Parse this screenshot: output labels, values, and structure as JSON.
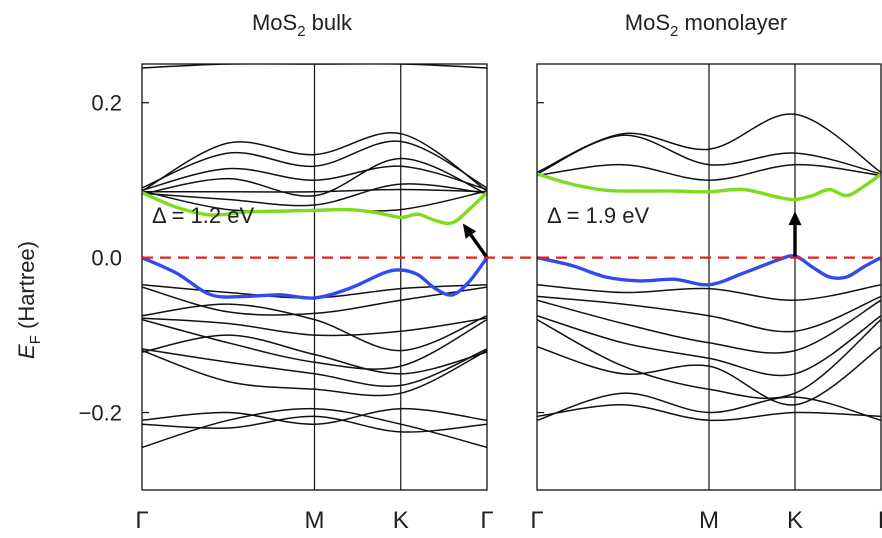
{
  "chart_data": [
    {
      "type": "line",
      "title": "MoS2 bulk",
      "title_main": "MoS",
      "title_sub": "2",
      "title_rest": " bulk",
      "ylabel_main": "E",
      "ylabel_sub": "F",
      "ylabel_rest": " (Hartree)",
      "ylim": [
        -0.3,
        0.25
      ],
      "yticks": [
        -0.2,
        0.0,
        0.2
      ],
      "ytick_labels": [
        "−0.2",
        "0.0",
        "0.2"
      ],
      "x_ticks": [
        0,
        0.5,
        0.75,
        1.0
      ],
      "x_tick_labels": [
        "Γ",
        "M",
        "K",
        "Γ"
      ],
      "fermi_level": 0.0,
      "gap_label": "Δ = 1.2 eV",
      "gap_arrow": {
        "from": [
          1.0,
          0.0
        ],
        "to": [
          0.93,
          0.044
        ]
      },
      "series": [
        {
          "role": "conduction-band-minimum",
          "color": "#7ddc1f",
          "x": [
            0,
            0.1,
            0.2,
            0.3,
            0.4,
            0.5,
            0.6,
            0.68,
            0.75,
            0.8,
            0.85,
            0.9,
            0.95,
            1.0
          ],
          "y": [
            0.084,
            0.065,
            0.055,
            0.059,
            0.06,
            0.061,
            0.062,
            0.058,
            0.052,
            0.056,
            0.048,
            0.045,
            0.063,
            0.084
          ]
        },
        {
          "role": "valence-band-maximum",
          "color": "#2f4cf0",
          "x": [
            0,
            0.1,
            0.2,
            0.3,
            0.4,
            0.5,
            0.6,
            0.7,
            0.75,
            0.8,
            0.85,
            0.9,
            0.95,
            1.0
          ],
          "y": [
            0.0,
            -0.02,
            -0.048,
            -0.05,
            -0.048,
            -0.052,
            -0.04,
            -0.02,
            -0.016,
            -0.022,
            -0.04,
            -0.048,
            -0.03,
            0.0
          ]
        },
        {
          "color": "#111111",
          "x": [
            0,
            0.25,
            0.5,
            0.75,
            1.0
          ],
          "y": [
            0.087,
            0.115,
            0.1,
            0.118,
            0.088
          ]
        },
        {
          "color": "#111111",
          "x": [
            0,
            0.25,
            0.5,
            0.75,
            1.0
          ],
          "y": [
            0.09,
            0.135,
            0.118,
            0.15,
            0.09
          ]
        },
        {
          "color": "#111111",
          "x": [
            0,
            0.25,
            0.5,
            0.75,
            1.0
          ],
          "y": [
            0.086,
            0.148,
            0.133,
            0.16,
            0.086
          ]
        },
        {
          "color": "#111111",
          "x": [
            0,
            0.25,
            0.5,
            0.75,
            1.0
          ],
          "y": [
            0.085,
            0.085,
            0.085,
            0.088,
            0.085
          ]
        },
        {
          "color": "#111111",
          "x": [
            0,
            0.25,
            0.5,
            0.75,
            1.0
          ],
          "y": [
            0.083,
            0.075,
            0.068,
            0.095,
            0.083
          ]
        },
        {
          "color": "#111111",
          "x": [
            0,
            0.25,
            0.5,
            0.75,
            1.0
          ],
          "y": [
            0.082,
            0.102,
            0.08,
            0.128,
            0.082
          ]
        },
        {
          "color": "#111111",
          "x": [
            0,
            0.25,
            0.5,
            0.75,
            1.0
          ],
          "y": [
            0.086,
            0.062,
            0.062,
            0.062,
            0.086
          ]
        },
        {
          "color": "#111111",
          "x": [
            0,
            0.25,
            0.5,
            0.75,
            1.0
          ],
          "y": [
            0.245,
            0.25,
            0.25,
            0.25,
            0.245
          ]
        },
        {
          "color": "#111111",
          "x": [
            0,
            0.25,
            0.5,
            0.75,
            1.0
          ],
          "y": [
            -0.035,
            -0.045,
            -0.052,
            -0.04,
            -0.035
          ]
        },
        {
          "color": "#111111",
          "x": [
            0,
            0.25,
            0.5,
            0.75,
            1.0
          ],
          "y": [
            -0.038,
            -0.07,
            -0.072,
            -0.055,
            -0.038
          ]
        },
        {
          "color": "#111111",
          "x": [
            0,
            0.25,
            0.5,
            0.75,
            1.0
          ],
          "y": [
            -0.075,
            -0.06,
            -0.08,
            -0.12,
            -0.075
          ]
        },
        {
          "color": "#111111",
          "x": [
            0,
            0.25,
            0.5,
            0.75,
            1.0
          ],
          "y": [
            -0.078,
            -0.085,
            -0.1,
            -0.095,
            -0.078
          ]
        },
        {
          "color": "#111111",
          "x": [
            0,
            0.25,
            0.5,
            0.75,
            1.0
          ],
          "y": [
            -0.08,
            -0.11,
            -0.135,
            -0.14,
            -0.08
          ]
        },
        {
          "color": "#111111",
          "x": [
            0,
            0.25,
            0.5,
            0.75,
            1.0
          ],
          "y": [
            -0.118,
            -0.135,
            -0.15,
            -0.165,
            -0.118
          ]
        },
        {
          "color": "#111111",
          "x": [
            0,
            0.25,
            0.5,
            0.75,
            1.0
          ],
          "y": [
            -0.12,
            -0.16,
            -0.17,
            -0.175,
            -0.12
          ]
        },
        {
          "color": "#111111",
          "x": [
            0,
            0.25,
            0.5,
            0.75,
            1.0
          ],
          "y": [
            -0.122,
            -0.1,
            -0.125,
            -0.15,
            -0.122
          ]
        },
        {
          "color": "#111111",
          "x": [
            0,
            0.25,
            0.5,
            0.75,
            1.0
          ],
          "y": [
            -0.21,
            -0.2,
            -0.215,
            -0.195,
            -0.21
          ]
        },
        {
          "color": "#111111",
          "x": [
            0,
            0.25,
            0.5,
            0.75,
            1.0
          ],
          "y": [
            -0.215,
            -0.22,
            -0.205,
            -0.225,
            -0.215
          ]
        },
        {
          "color": "#111111",
          "x": [
            0,
            0.25,
            0.5,
            0.75,
            1.0
          ],
          "y": [
            -0.245,
            -0.21,
            -0.195,
            -0.215,
            -0.245
          ]
        }
      ]
    },
    {
      "type": "line",
      "title": "MoS2 monolayer",
      "title_main": "MoS",
      "title_sub": "2",
      "title_rest": " monolayer",
      "ylim": [
        -0.3,
        0.25
      ],
      "yticks": [
        -0.2,
        0.0,
        0.2
      ],
      "x_ticks": [
        0,
        0.5,
        0.75,
        1.0
      ],
      "x_tick_labels": [
        "Γ",
        "M",
        "K",
        "I"
      ],
      "fermi_level": 0.0,
      "gap_label": "Δ = 1.9 eV",
      "gap_arrow": {
        "from": [
          0.75,
          0.0
        ],
        "to": [
          0.75,
          0.06
        ]
      },
      "series": [
        {
          "role": "conduction-band-minimum",
          "color": "#7ddc1f",
          "x": [
            0,
            0.1,
            0.2,
            0.3,
            0.4,
            0.5,
            0.6,
            0.7,
            0.75,
            0.8,
            0.85,
            0.9,
            0.95,
            1.0
          ],
          "y": [
            0.108,
            0.095,
            0.087,
            0.086,
            0.086,
            0.085,
            0.088,
            0.078,
            0.075,
            0.08,
            0.088,
            0.08,
            0.092,
            0.108
          ]
        },
        {
          "role": "valence-band-maximum",
          "color": "#2f4cf0",
          "x": [
            0,
            0.1,
            0.2,
            0.3,
            0.4,
            0.5,
            0.6,
            0.7,
            0.75,
            0.8,
            0.85,
            0.9,
            0.95,
            1.0
          ],
          "y": [
            0.0,
            -0.01,
            -0.025,
            -0.03,
            -0.028,
            -0.035,
            -0.02,
            -0.003,
            0.002,
            -0.012,
            -0.025,
            -0.025,
            -0.012,
            0.0
          ]
        },
        {
          "color": "#111111",
          "x": [
            0,
            0.25,
            0.5,
            0.75,
            1.0
          ],
          "y": [
            0.11,
            0.16,
            0.14,
            0.185,
            0.11
          ]
        },
        {
          "color": "#111111",
          "x": [
            0,
            0.25,
            0.5,
            0.75,
            1.0
          ],
          "y": [
            0.108,
            0.158,
            0.12,
            0.135,
            0.108
          ]
        },
        {
          "color": "#111111",
          "x": [
            0,
            0.25,
            0.5,
            0.75,
            1.0
          ],
          "y": [
            0.106,
            0.12,
            0.1,
            0.12,
            0.106
          ]
        },
        {
          "color": "#111111",
          "x": [
            0,
            0.25,
            0.5,
            0.75,
            1.0
          ],
          "y": [
            -0.035,
            -0.045,
            -0.04,
            -0.055,
            -0.035
          ]
        },
        {
          "color": "#111111",
          "x": [
            0,
            0.25,
            0.5,
            0.75,
            1.0
          ],
          "y": [
            -0.05,
            -0.06,
            -0.075,
            -0.095,
            -0.05
          ]
        },
        {
          "color": "#111111",
          "x": [
            0,
            0.25,
            0.5,
            0.75,
            1.0
          ],
          "y": [
            -0.055,
            -0.085,
            -0.11,
            -0.12,
            -0.055
          ]
        },
        {
          "color": "#111111",
          "x": [
            0,
            0.25,
            0.5,
            0.75,
            1.0
          ],
          "y": [
            -0.075,
            -0.11,
            -0.13,
            -0.15,
            -0.075
          ]
        },
        {
          "color": "#111111",
          "x": [
            0,
            0.25,
            0.5,
            0.75,
            1.0
          ],
          "y": [
            -0.08,
            -0.14,
            -0.17,
            -0.175,
            -0.08
          ]
        },
        {
          "color": "#111111",
          "x": [
            0,
            0.25,
            0.5,
            0.75,
            1.0
          ],
          "y": [
            -0.115,
            -0.15,
            -0.14,
            -0.19,
            -0.115
          ]
        },
        {
          "color": "#111111",
          "x": [
            0,
            0.25,
            0.5,
            0.75,
            1.0
          ],
          "y": [
            -0.21,
            -0.175,
            -0.2,
            -0.18,
            -0.21
          ]
        },
        {
          "color": "#111111",
          "x": [
            0,
            0.25,
            0.5,
            0.75,
            1.0
          ],
          "y": [
            -0.205,
            -0.19,
            -0.21,
            -0.2,
            -0.205
          ]
        }
      ]
    }
  ]
}
